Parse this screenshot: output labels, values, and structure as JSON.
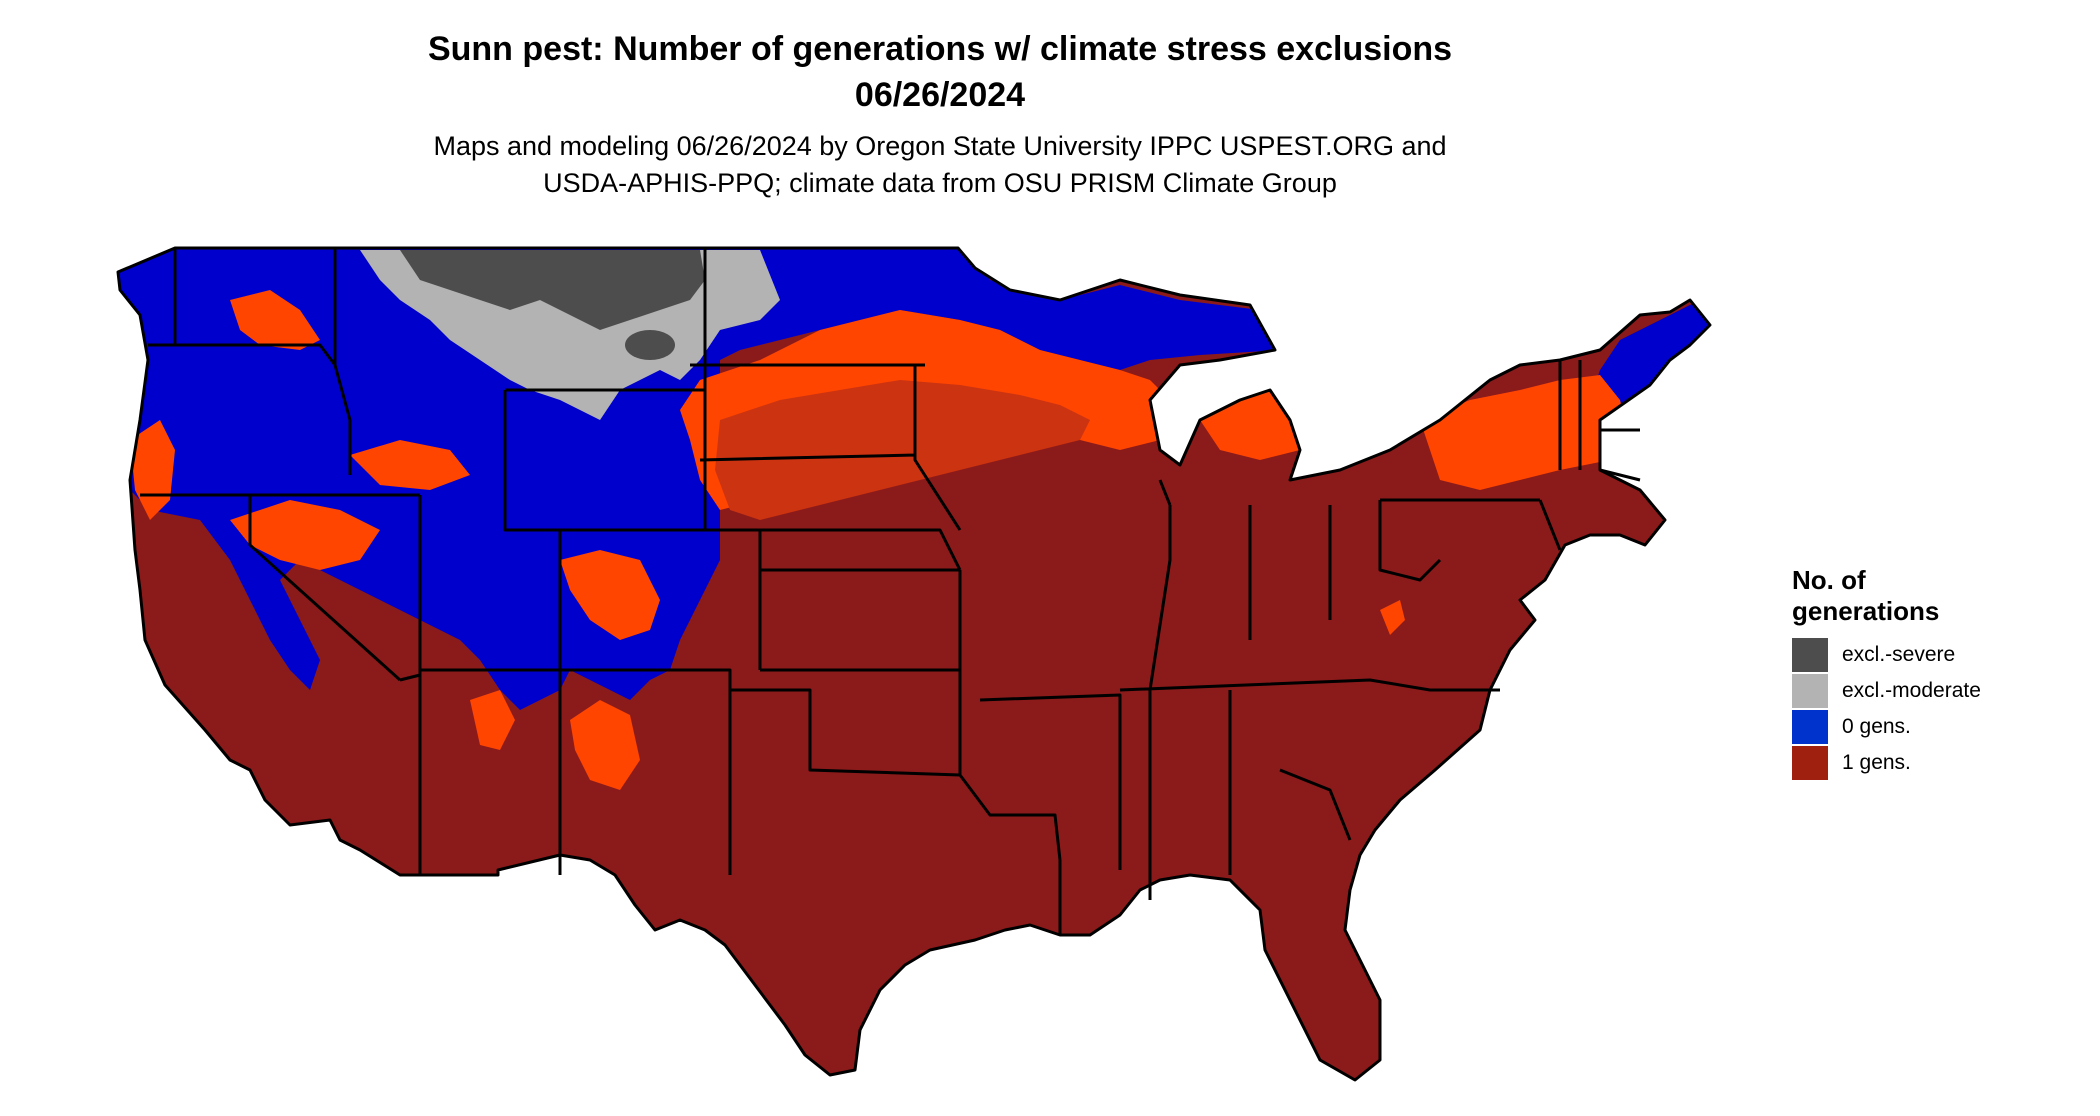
{
  "title": {
    "line1": "Sunn pest: Number of generations w/ climate stress exclusions",
    "line2": "06/26/2024"
  },
  "subtitle": {
    "line1": "Maps and modeling 06/26/2024 by Oregon State University IPPC USPEST.ORG and",
    "line2": "USDA-APHIS-PPQ; climate data from OSU PRISM Climate Group"
  },
  "map": {
    "region": "contiguous-united-states",
    "colors": {
      "excl_severe": "#4d4d4d",
      "excl_moderate": "#b3b3b3",
      "zero_gens": "#0000cc",
      "one_gen": "#8b1a1a",
      "transition": "#ff4500",
      "transition_mid": "#cc3311",
      "borders": "#000000"
    }
  },
  "legend": {
    "title_line1": "No. of",
    "title_line2": "generations",
    "items": [
      {
        "label": "excl.-severe",
        "color": "#4d4d4d"
      },
      {
        "label": "excl.-moderate",
        "color": "#b3b3b3"
      },
      {
        "label": "0 gens.",
        "color": "#0033cc"
      },
      {
        "label": "1 gens.",
        "color": "#a02010"
      }
    ]
  }
}
